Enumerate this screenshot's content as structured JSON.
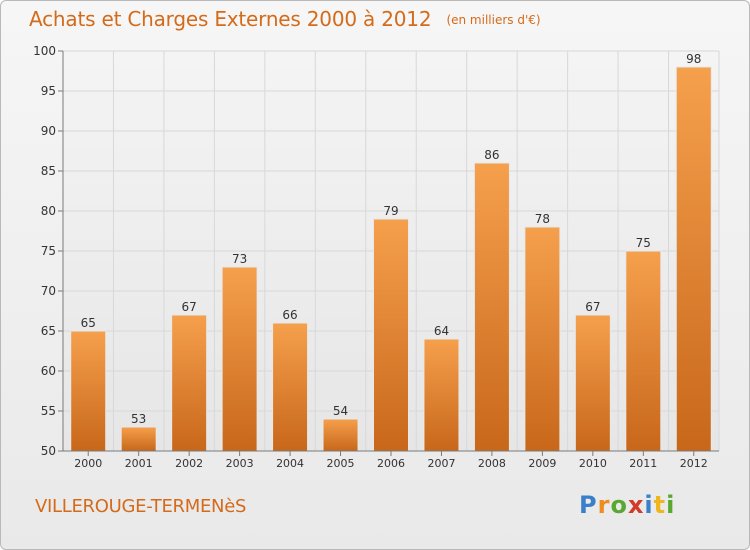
{
  "header": {
    "title": "Achats et Charges Externes 2000 à 2012",
    "unit": "(en milliers d'€)"
  },
  "footer": {
    "commune": "VILLEROUGE-TERMENèS",
    "logo": {
      "letters": [
        "P",
        "r",
        "o",
        "x",
        "i",
        "t",
        "i"
      ],
      "colors": [
        "#3a7fc9",
        "#f08b1d",
        "#59a832",
        "#d23a2a",
        "#3a7fc9",
        "#efb51c",
        "#59a832"
      ]
    }
  },
  "colors": {
    "title": "#d46b1a",
    "bar_top": "#f5a04d",
    "bar_bottom": "#c8671a",
    "grid": "#d8d8d8",
    "axis": "#7a7a7a",
    "text": "#333333"
  },
  "chart_data": {
    "type": "bar",
    "title": "Achats et Charges Externes 2000 à 2012",
    "subtitle": "(en milliers d'€)",
    "xlabel": "",
    "ylabel": "",
    "categories": [
      "2000",
      "2001",
      "2002",
      "2003",
      "2004",
      "2005",
      "2006",
      "2007",
      "2008",
      "2009",
      "2010",
      "2011",
      "2012"
    ],
    "values": [
      65,
      53,
      67,
      73,
      66,
      54,
      79,
      64,
      86,
      78,
      67,
      75,
      98
    ],
    "ylim": [
      50,
      100
    ],
    "yticks": [
      50,
      55,
      60,
      65,
      70,
      75,
      80,
      85,
      90,
      95,
      100
    ],
    "grid": true,
    "legend": "none",
    "data_labels": true
  }
}
